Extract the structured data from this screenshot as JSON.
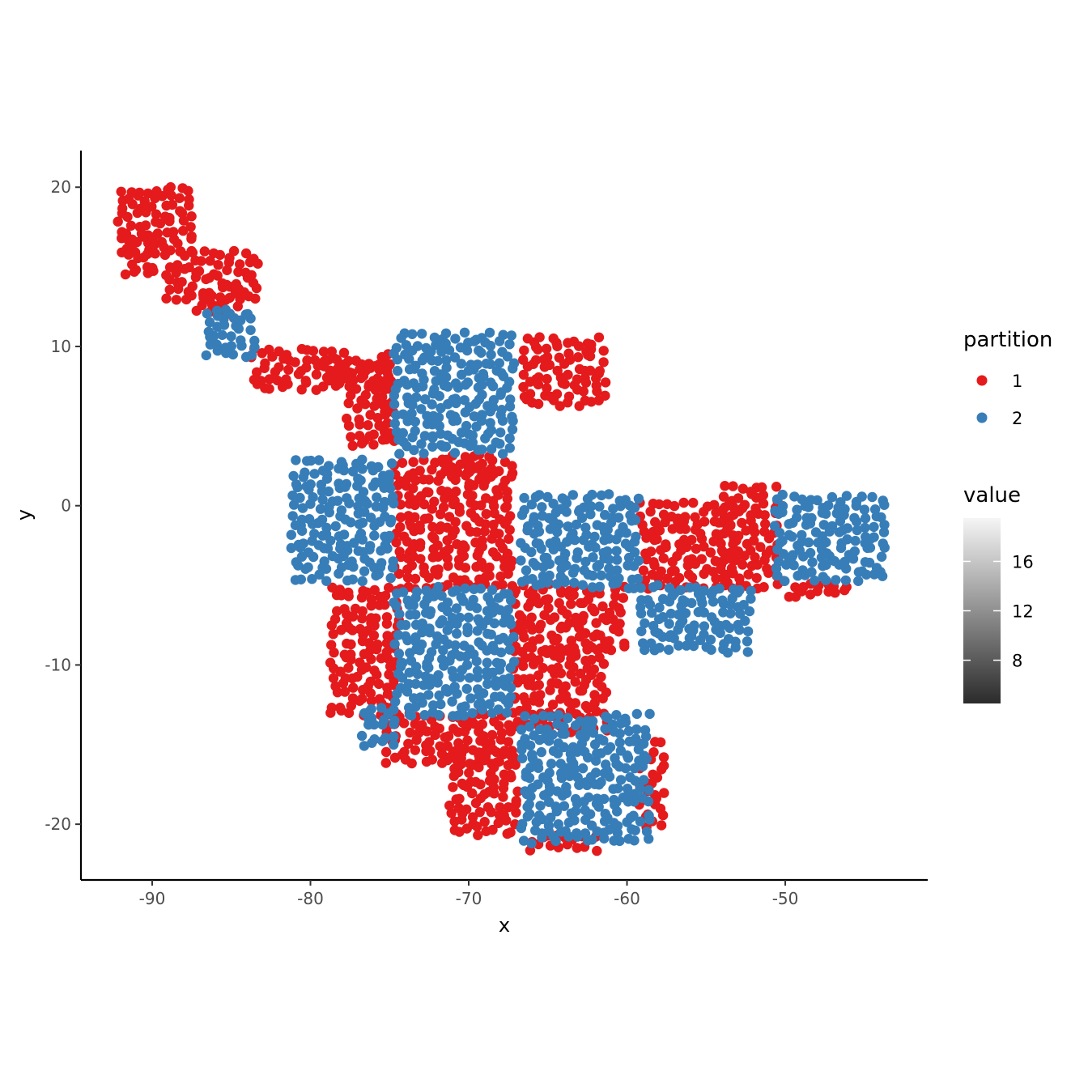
{
  "chart_data": {
    "type": "scatter",
    "title": "",
    "xlabel": "x",
    "ylabel": "y",
    "xlim": [
      -94.5,
      -41
    ],
    "ylim": [
      -23.5,
      22.3
    ],
    "x_ticks": [
      {
        "value": -90,
        "label": "-90"
      },
      {
        "value": -80,
        "label": "-80"
      },
      {
        "value": -70,
        "label": "-70"
      },
      {
        "value": -60,
        "label": "-60"
      },
      {
        "value": -50,
        "label": "-50"
      }
    ],
    "y_ticks": [
      {
        "value": 20,
        "label": "20"
      },
      {
        "value": 10,
        "label": "10"
      },
      {
        "value": 0,
        "label": "0"
      },
      {
        "value": -10,
        "label": "-10"
      },
      {
        "value": -20,
        "label": "-20"
      }
    ],
    "grid": false,
    "legend": {
      "placement": "right",
      "partition": {
        "title": "partition",
        "entries": [
          {
            "label": "1",
            "color": "#E41A1C"
          },
          {
            "label": "2",
            "color": "#377EB8"
          }
        ]
      },
      "value": {
        "title": "value",
        "min": 4.5,
        "max": 19.5,
        "color_low": "#2b2b2b",
        "color_high": "#f5f5f5",
        "ticks": [
          {
            "value": 8,
            "label": "8"
          },
          {
            "value": 12,
            "label": "12"
          },
          {
            "value": 16,
            "label": "16"
          }
        ]
      }
    },
    "series": [
      {
        "partition": "1",
        "color": "#E41A1C",
        "regions": [
          {
            "x": [
              -92,
              -87.5
            ],
            "y": [
              16,
              20
            ]
          },
          {
            "x": [
              -91.5,
              -89.5
            ],
            "y": [
              14.5,
              17
            ]
          },
          {
            "x": [
              -89,
              -83.5
            ],
            "y": [
              13,
              16
            ]
          },
          {
            "x": [
              -87,
              -84.5
            ],
            "y": [
              12,
              13.5
            ]
          },
          {
            "x": [
              -83.5,
              -78
            ],
            "y": [
              7.5,
              10
            ]
          },
          {
            "x": [
              -79,
              -75.5
            ],
            "y": [
              8,
              9.5
            ]
          },
          {
            "x": [
              -77.5,
              -75
            ],
            "y": [
              4,
              9
            ]
          },
          {
            "x": [
              -75.5,
              -74.5
            ],
            "y": [
              4,
              10
            ]
          },
          {
            "x": [
              -74.5,
              -67
            ],
            "y": [
              -5,
              3
            ]
          },
          {
            "x": [
              -71.5,
              -68.5
            ],
            "y": [
              2,
              3.5
            ]
          },
          {
            "x": [
              -66.5,
              -61.5
            ],
            "y": [
              6.5,
              10.5
            ]
          },
          {
            "x": [
              -78.5,
              -74.5
            ],
            "y": [
              -13,
              -5
            ]
          },
          {
            "x": [
              -67,
              -60
            ],
            "y": [
              -9,
              -5
            ]
          },
          {
            "x": [
              -67,
              -61
            ],
            "y": [
              -14,
              -9
            ]
          },
          {
            "x": [
              -75,
              -67
            ],
            "y": [
              -16,
              -13
            ]
          },
          {
            "x": [
              -71,
              -67
            ],
            "y": [
              -20.5,
              -15
            ]
          },
          {
            "x": [
              -59,
              -53
            ],
            "y": [
              -5,
              0
            ]
          },
          {
            "x": [
              -54,
              -50.5
            ],
            "y": [
              -5,
              1.5
            ]
          },
          {
            "x": [
              -50,
              -46
            ],
            "y": [
              -5.5,
              -4.5
            ]
          },
          {
            "x": [
              -59,
              -57.5
            ],
            "y": [
              -20,
              -15
            ]
          },
          {
            "x": [
              -66,
              -62
            ],
            "y": [
              -21.5,
              -20.5
            ]
          }
        ]
      },
      {
        "partition": "2",
        "color": "#377EB8",
        "regions": [
          {
            "x": [
              -86.5,
              -83.5
            ],
            "y": [
              9.5,
              12.5
            ]
          },
          {
            "x": [
              -74.5,
              -67
            ],
            "y": [
              3.5,
              11
            ]
          },
          {
            "x": [
              -81,
              -74.5
            ],
            "y": [
              -4.5,
              3
            ]
          },
          {
            "x": [
              -66.5,
              -59
            ],
            "y": [
              -5,
              0.5
            ]
          },
          {
            "x": [
              -74.5,
              -67
            ],
            "y": [
              -13,
              -5
            ]
          },
          {
            "x": [
              -76.5,
              -74.5
            ],
            "y": [
              -15,
              -12.5
            ]
          },
          {
            "x": [
              -66.5,
              -58.5
            ],
            "y": [
              -21,
              -13
            ]
          },
          {
            "x": [
              -59,
              -52
            ],
            "y": [
              -9,
              -5
            ]
          },
          {
            "x": [
              -50.5,
              -43.5
            ],
            "y": [
              -4.5,
              0.5
            ]
          }
        ]
      }
    ]
  }
}
